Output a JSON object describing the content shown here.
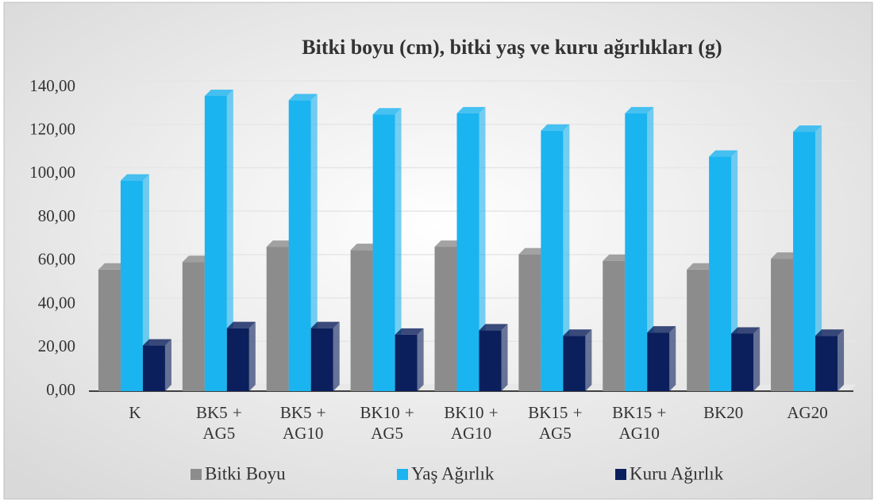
{
  "chart_data": {
    "type": "bar",
    "title": "Bitki boyu (cm),  bitki yaş ve kuru ağırlıkları (g)",
    "categories": [
      "K",
      "BK5 + AG5",
      "BK5 + AG10",
      "BK10 + AG5",
      "BK10 + AG10",
      "BK15 + AG5",
      "BK15 + AG10",
      "BK20",
      "AG20"
    ],
    "series": [
      {
        "name": "Bitki Boyu",
        "color": "#8c8c8c",
        "values": [
          56,
          59.5,
          66.5,
          65,
          66.5,
          63,
          60,
          56,
          61
        ]
      },
      {
        "name": "Yaş Ağırlık",
        "color": "#1ab4f0",
        "values": [
          97,
          136,
          134,
          127.5,
          128,
          120,
          128,
          108,
          119.5
        ]
      },
      {
        "name": "Kuru Ağırlık",
        "color": "#0b1f5c",
        "values": [
          21,
          29,
          29,
          26,
          28,
          25.5,
          27,
          26.5,
          25.5
        ]
      }
    ],
    "ylim": [
      0,
      140
    ],
    "yticks": [
      {
        "value": 0,
        "label": "0,00"
      },
      {
        "value": 20,
        "label": "20,00"
      },
      {
        "value": 40,
        "label": "40,00"
      },
      {
        "value": 60,
        "label": "60,00"
      },
      {
        "value": 80,
        "label": "80,00"
      },
      {
        "value": 100,
        "label": "100,00"
      },
      {
        "value": 120,
        "label": "120,00"
      },
      {
        "value": 140,
        "label": "140,00"
      }
    ],
    "grid": true,
    "legend": "bottom"
  }
}
